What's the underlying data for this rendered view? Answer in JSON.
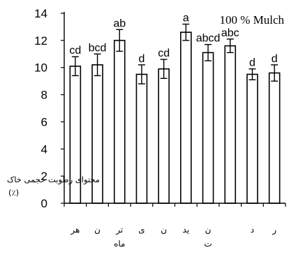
{
  "chart_data": {
    "type": "bar",
    "title": "100 % Mulch",
    "ylabel": "محتوای رطوبت حجمی خاک",
    "yunit": "(٪)",
    "ylim": [
      0,
      14
    ],
    "yticks": [
      "0",
      "2",
      "4",
      "6",
      "8",
      "10",
      "12",
      "14"
    ],
    "categories": [
      "هر",
      "ن",
      "تر ماه",
      "ی",
      "ن",
      "ید",
      "ن ت",
      "",
      "د",
      "ر"
    ],
    "values": [
      10.1,
      10.2,
      12.0,
      9.5,
      9.9,
      12.6,
      11.1,
      11.6,
      9.5,
      9.6
    ],
    "errors": [
      0.7,
      0.8,
      0.8,
      0.7,
      0.7,
      0.6,
      0.6,
      0.5,
      0.4,
      0.6
    ],
    "significance_letters": [
      "cd",
      "bcd",
      "ab",
      "d",
      "cd",
      "a",
      "abcd",
      "abc",
      "d",
      "d"
    ],
    "grid": false
  }
}
